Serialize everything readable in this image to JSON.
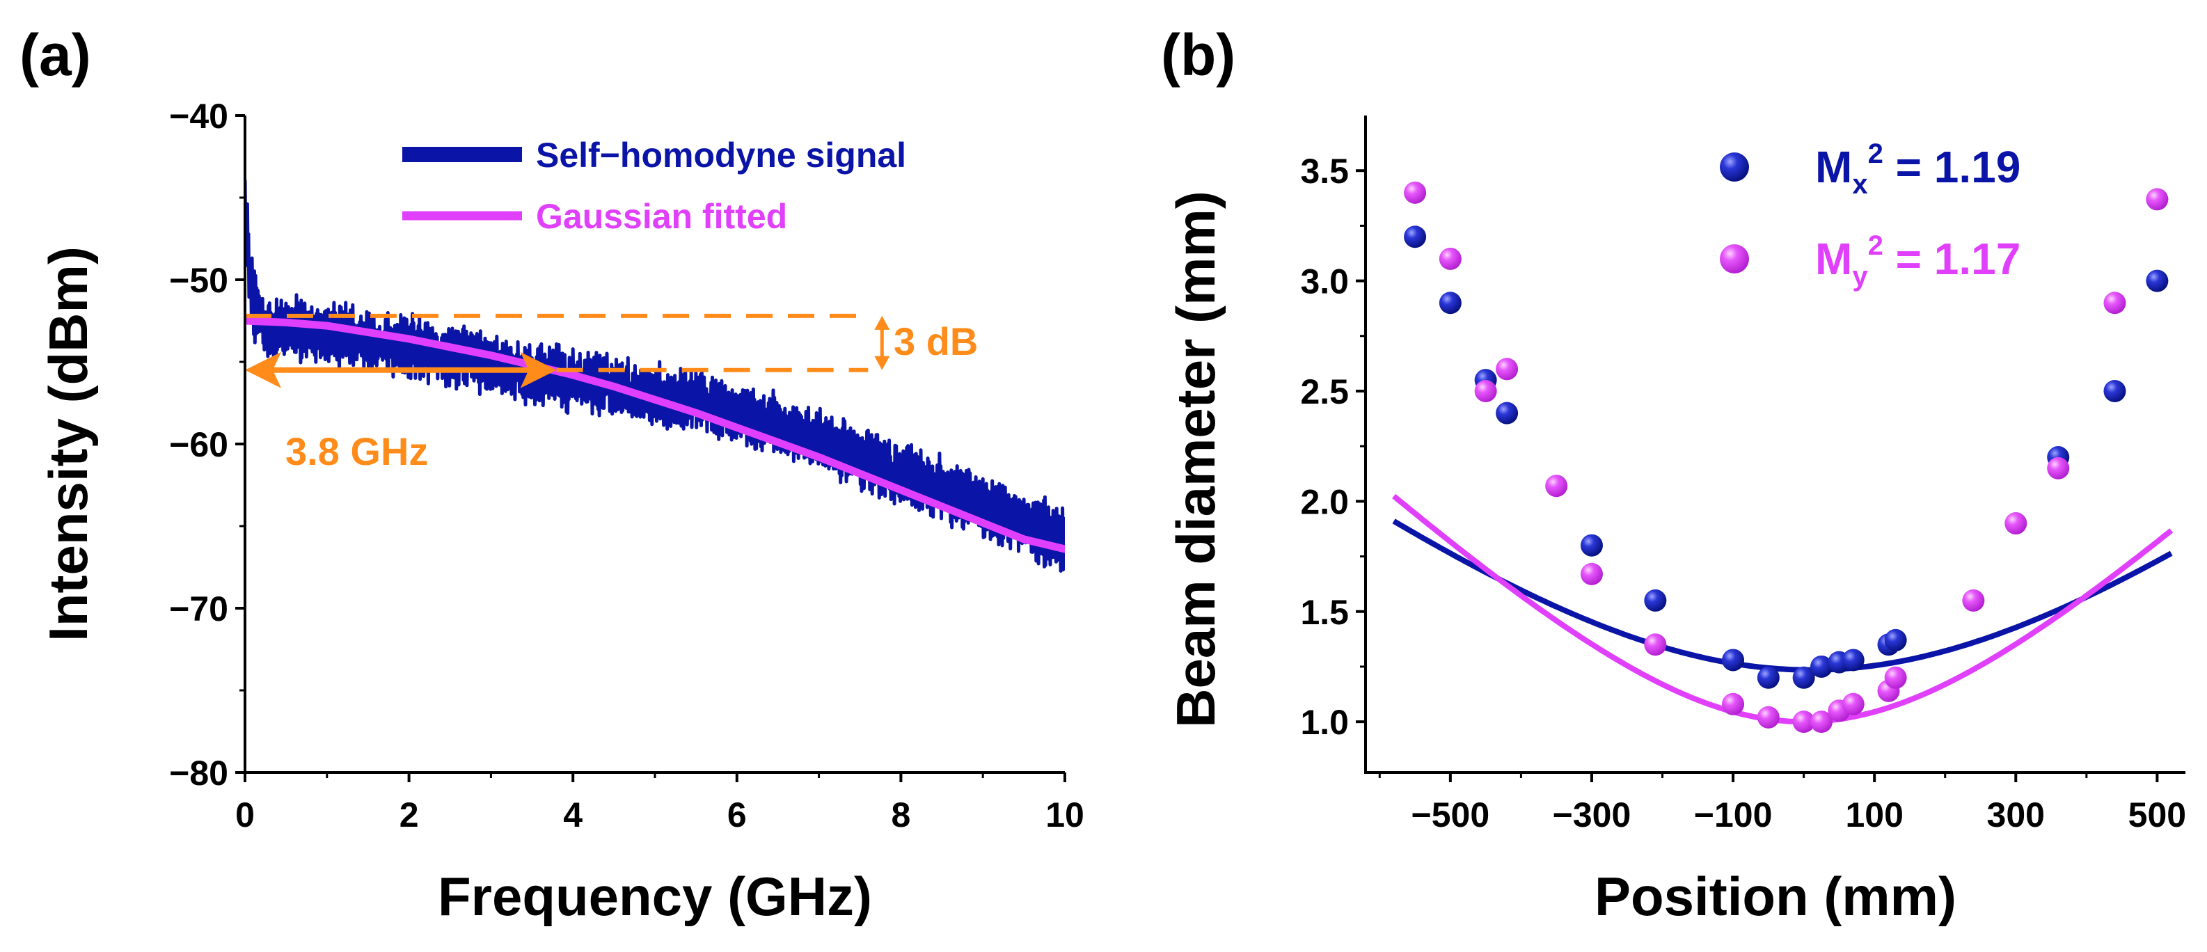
{
  "colors": {
    "navy": "#0a14a6",
    "magenta": "#e040fb",
    "orange": "#ff8c1a",
    "axis": "#000000"
  },
  "chart_data": [
    {
      "panel_label": "(a)",
      "type": "line",
      "xlabel": "Frequency (GHz)",
      "ylabel": "Intensity (dBm)",
      "xlim": [
        0,
        10
      ],
      "ylim": [
        -80,
        -40
      ],
      "xticks": [
        0,
        2,
        4,
        6,
        8,
        10
      ],
      "xtick_labels": [
        "0",
        "2",
        "4",
        "6",
        "8",
        "10"
      ],
      "yticks": [
        -80,
        -70,
        -60,
        -50,
        -40
      ],
      "ytick_labels": [
        "−80",
        "−70",
        "−60",
        "−50",
        "−40"
      ],
      "legend": {
        "position": "top-right",
        "entries": [
          {
            "label": "Self−homodyne signal",
            "color": "#0a14a6"
          },
          {
            "label": "Gaussian fitted",
            "color": "#e040fb"
          }
        ]
      },
      "series": [
        {
          "name": "Self−homodyne signal",
          "color": "#0a14a6",
          "x": [
            0,
            0.05,
            0.1,
            0.2,
            0.3,
            0.5,
            1,
            1.5,
            2,
            2.5,
            3,
            3.5,
            4,
            4.5,
            5,
            5.5,
            6,
            6.5,
            7,
            7.5,
            8,
            8.5,
            9,
            9.5,
            10
          ],
          "y": [
            -45,
            -49,
            -51.5,
            -52.5,
            -52.8,
            -53,
            -53.3,
            -53.7,
            -54.1,
            -54.6,
            -55.2,
            -55.8,
            -56.2,
            -56.6,
            -57,
            -57.5,
            -58.2,
            -59,
            -59.8,
            -60.8,
            -61.8,
            -62.8,
            -63.8,
            -64.8,
            -65.8
          ],
          "noise_band_dB": 3
        },
        {
          "name": "Gaussian fitted",
          "color": "#e040fb",
          "x": [
            0,
            0.5,
            1,
            1.5,
            2,
            2.5,
            3,
            3.5,
            4,
            4.5,
            5,
            5.5,
            6,
            6.5,
            7,
            7.5,
            8,
            8.5,
            9,
            9.5,
            10
          ],
          "y": [
            -52.5,
            -52.6,
            -52.8,
            -53.2,
            -53.6,
            -54.1,
            -54.6,
            -55.2,
            -55.8,
            -56.5,
            -57.3,
            -58.1,
            -59,
            -59.9,
            -60.8,
            -61.8,
            -62.8,
            -63.8,
            -64.8,
            -65.8,
            -66.4
          ]
        }
      ],
      "annotations": {
        "db_label": "3 dB",
        "ghz_label": "3.8 GHz",
        "upper_dashed_y": -52.2,
        "lower_dashed_y": -55.5,
        "dashed_x_start": 0,
        "dashed_x_end": 7.6,
        "bandwidth_arrow_x": [
          0,
          3.8
        ],
        "bandwidth_arrow_y": -55.5
      }
    },
    {
      "panel_label": "(b)",
      "type": "scatter",
      "xlabel": "Position (mm)",
      "ylabel": "Beam diameter (mm)",
      "xlim": [
        -620,
        540
      ],
      "ylim": [
        0.77,
        3.75
      ],
      "xticks": [
        -500,
        -300,
        -100,
        100,
        300,
        500
      ],
      "xtick_labels": [
        "−500",
        "−300",
        "−100",
        "100",
        "300",
        "500"
      ],
      "xminor": [
        -600,
        -400,
        -200,
        0,
        200,
        400
      ],
      "yticks": [
        1.0,
        1.5,
        2.0,
        2.5,
        3.0,
        3.5
      ],
      "ytick_labels": [
        "1.0",
        "1.5",
        "2.0",
        "2.5",
        "3.0",
        "3.5"
      ],
      "legend": {
        "position": "top-right",
        "entries": [
          {
            "label_main": "M",
            "label_sub": "x",
            "label_sup": "2",
            "label_rest": " = 1.19",
            "color": "#0a14a6"
          },
          {
            "label_main": "M",
            "label_sub": "y",
            "label_sup": "2",
            "label_rest": " = 1.17",
            "color": "#e040fb"
          }
        ]
      },
      "series": [
        {
          "name": "Mx2 = 1.19",
          "color": "#0a14a6",
          "x": [
            -550,
            -500,
            -450,
            -420,
            -300,
            -210,
            -100,
            -50,
            0,
            25,
            50,
            70,
            120,
            130,
            360,
            440,
            500
          ],
          "y": [
            3.2,
            2.9,
            2.55,
            2.4,
            1.8,
            1.55,
            1.28,
            1.2,
            1.2,
            1.25,
            1.27,
            1.28,
            1.35,
            1.37,
            2.2,
            2.5,
            3.0
          ],
          "fit": {
            "waist": 1.235,
            "center": 10,
            "k": 6.1e-06
          }
        },
        {
          "name": "My2 = 1.17",
          "color": "#e040fb",
          "x": [
            -550,
            -500,
            -450,
            -420,
            -350,
            -300,
            -210,
            -100,
            -50,
            0,
            25,
            50,
            70,
            120,
            130,
            240,
            300,
            360,
            440,
            500
          ],
          "y": [
            3.4,
            3.1,
            2.5,
            2.6,
            2.07,
            1.67,
            1.35,
            1.08,
            1.02,
            1.0,
            1.0,
            1.05,
            1.08,
            1.14,
            1.2,
            1.55,
            1.9,
            2.15,
            2.9,
            3.37
          ],
          "fit": {
            "waist": 1.0,
            "center": 0,
            "k": 9.2e-06
          }
        }
      ]
    }
  ]
}
